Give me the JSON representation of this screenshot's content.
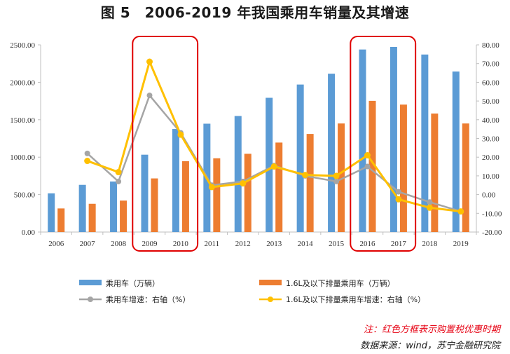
{
  "title": "图 5　2006-2019 年我国乘用车销量及其增速",
  "note_red": "注：红色方框表示购置税优惠时期",
  "source": "数据来源：wind，苏宁金融研究院",
  "colors": {
    "bar1": "#5b9bd5",
    "bar2": "#ed7d31",
    "line1": "#a5a5a5",
    "line2": "#ffc000",
    "box": "#e00000"
  },
  "chart_data": {
    "type": "bar",
    "categories": [
      "2006",
      "2007",
      "2008",
      "2009",
      "2010",
      "2011",
      "2012",
      "2013",
      "2014",
      "2015",
      "2016",
      "2017",
      "2018",
      "2019"
    ],
    "left_axis": {
      "min": 0,
      "max": 2500,
      "step": 500,
      "tick_labels": [
        "0.00",
        "500.00",
        "1000.00",
        "1500.00",
        "2000.00",
        "2500.00"
      ]
    },
    "right_axis": {
      "min": -20,
      "max": 80,
      "step": 10,
      "tick_labels": [
        "-20.00",
        "-10.00",
        "0.00",
        "10.00",
        "20.00",
        "30.00",
        "40.00",
        "50.00",
        "60.00",
        "70.00",
        "80.00"
      ]
    },
    "series": [
      {
        "name": "乘用车（万辆）",
        "kind": "bar",
        "axis": "left",
        "values": [
          517,
          630,
          675,
          1033,
          1376,
          1447,
          1550,
          1793,
          1970,
          2115,
          2438,
          2472,
          2371,
          2144
        ]
      },
      {
        "name": "1.6L及以下排量乘用车（万辆）",
        "kind": "bar",
        "axis": "left",
        "values": [
          315,
          377,
          420,
          716,
          946,
          985,
          1045,
          1195,
          1310,
          1450,
          1752,
          1702,
          1583,
          1450
        ]
      },
      {
        "name": "乘用车增速：右轴（%）",
        "kind": "line",
        "axis": "right",
        "values": [
          null,
          22.0,
          7.0,
          53.0,
          33.0,
          5.0,
          7.0,
          15.5,
          10.0,
          7.0,
          15.0,
          1.5,
          -4.0,
          -9.0
        ]
      },
      {
        "name": "1.6L及以下排量乘用车增速：右轴（%）",
        "kind": "line",
        "axis": "right",
        "values": [
          null,
          18.0,
          12.0,
          71.0,
          32.0,
          4.0,
          6.0,
          15.0,
          10.5,
          10.0,
          21.0,
          -2.5,
          -7.0,
          -9.0
        ]
      }
    ],
    "highlight_periods": [
      [
        "2009",
        "2010"
      ],
      [
        "2016",
        "2017"
      ]
    ]
  }
}
